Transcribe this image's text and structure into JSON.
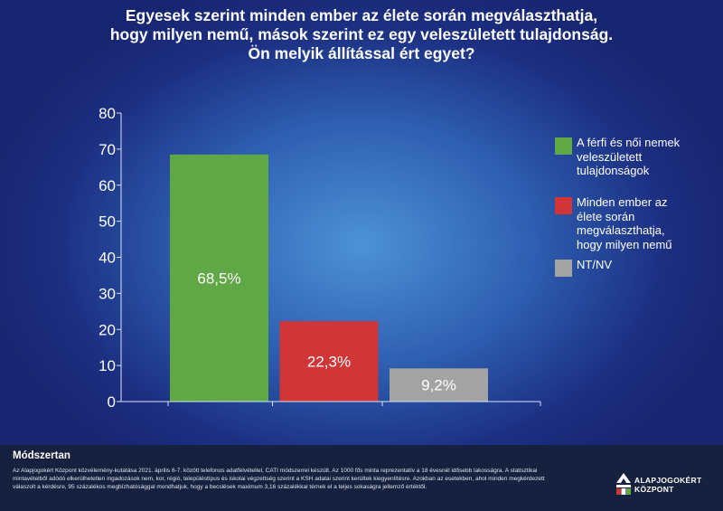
{
  "title": "Egyesek szerint minden ember az élete során megválaszthatja,\nhogy milyen nemű, mások szerint ez egy veleszületett tulajdonság.\nÖn melyik állítással ért egyet?",
  "colors": {
    "bg_dark": "#1a2a78",
    "bg_light": "#4d92d6",
    "green": "#5fa845",
    "red": "#d03537",
    "gray": "#a3a3a3",
    "footer": "#16213f"
  },
  "chart_data": {
    "type": "bar",
    "categories": [
      "A férfi és női nemek veleszületett tulajdonságok",
      "Minden ember az élete során megválaszthatja, hogy milyen nemű",
      "NT/NV"
    ],
    "values": [
      68.5,
      22.3,
      9.2
    ],
    "data_labels": [
      "68,5%",
      "22,3%",
      "9,2%"
    ],
    "colors": [
      "#5fa845",
      "#d03537",
      "#a3a3a3"
    ],
    "ylim": [
      0,
      80
    ],
    "yticks": [
      "0",
      "10",
      "20",
      "30",
      "40",
      "50",
      "60",
      "70",
      "80"
    ],
    "grid": false,
    "legend_position": "right"
  },
  "legend": [
    {
      "label": "A férfi és női nemek\nveleszületett\ntulajdonságok",
      "color": "#5fa845"
    },
    {
      "label": "Minden ember az\nélete során\nmegválaszthatja,\nhogy milyen nemű",
      "color": "#d03537"
    },
    {
      "label": "NT/NV",
      "color": "#a3a3a3"
    }
  ],
  "footer": {
    "method_title": "Módszertan",
    "method_text": "Az Alapjogokért Központ közvélemény-kutatása 2021. április 6-7. között telefonos adatfelvétellel, CATI módszerrel készült. Az 1000 fős minta reprezentatív a 18 évesnél idősebb lakosságra. A statisztikai mintavételből adódó elkerülhetetlen ingadozások nem, kor, régió, településtípus és iskolai végzettség szerint a KSH adatai szerint kerültek kiegyenlítésre. Azokban az esetekben, ahol minden megkérdezett válaszolt a kérdésre, 95 százalékos megbízhatósággal mondhatjuk, hogy a becslések maximum 3,16 százalékkal térnek el a teljes sokaságra jellemző értéktől.",
    "logo_line1": "ALAPJOGOKÉRT",
    "logo_line2": "KÖZPONT"
  }
}
